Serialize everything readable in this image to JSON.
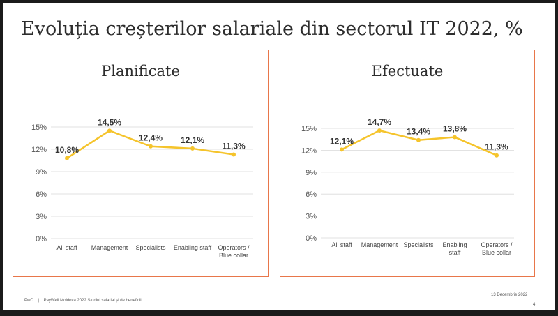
{
  "slide": {
    "title": "Evoluția creșterilor salariale din sectorul IT 2022, %",
    "footer": {
      "brand": "PwC",
      "separator": "|",
      "source": "PayWell Moldova 2022 Studiul salarial și de beneficii",
      "date": "13 Decembrie 2022",
      "page": "4"
    }
  },
  "colors": {
    "line": "#f5c42c",
    "panel_border": "#e8764a",
    "grid": "#d9d9d9"
  },
  "chart_data": [
    {
      "type": "line",
      "title": "Planificate",
      "categories": [
        "All staff",
        "Management",
        "Specialists",
        "Enabling staff",
        "Operators / Blue collar"
      ],
      "category_lines": [
        [
          "All staff"
        ],
        [
          "Management"
        ],
        [
          "Specialists"
        ],
        [
          "Enabling staff"
        ],
        [
          "Operators /",
          "Blue collar"
        ]
      ],
      "values": [
        10.8,
        14.5,
        12.4,
        12.1,
        11.3
      ],
      "data_labels": [
        "10,8%",
        "14,5%",
        "12,4%",
        "12,1%",
        "11,3%"
      ],
      "y_ticks": [
        0,
        3,
        6,
        9,
        12,
        15
      ],
      "y_tick_labels": [
        "0%",
        "3%",
        "6%",
        "9%",
        "12%",
        "15%"
      ],
      "ylim": [
        0,
        15
      ],
      "grid": true,
      "legend": "none"
    },
    {
      "type": "line",
      "title": "Efectuate",
      "categories": [
        "All staff",
        "Management",
        "Specialists",
        "Enabling staff",
        "Operators / Blue collar"
      ],
      "category_lines": [
        [
          "All staff"
        ],
        [
          "Management"
        ],
        [
          "Specialists"
        ],
        [
          "Enabling",
          "staff"
        ],
        [
          "Operators /",
          "Blue collar"
        ]
      ],
      "values": [
        12.1,
        14.7,
        13.4,
        13.8,
        11.3
      ],
      "data_labels": [
        "12,1%",
        "14,7%",
        "13,4%",
        "13,8%",
        "11,3%"
      ],
      "y_ticks": [
        0,
        3,
        6,
        9,
        12,
        15
      ],
      "y_tick_labels": [
        "0%",
        "3%",
        "6%",
        "9%",
        "12%",
        "15%"
      ],
      "ylim": [
        0,
        15
      ],
      "grid": true,
      "legend": "none"
    }
  ]
}
